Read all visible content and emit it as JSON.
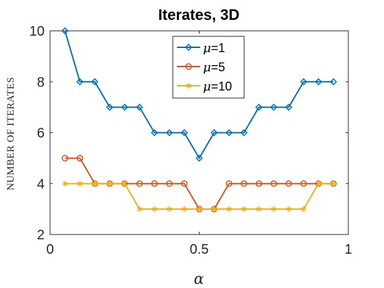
{
  "chart_data": {
    "type": "line",
    "title": "Iterates, 3D",
    "xlabel": "α",
    "ylabel": "NUMBER OF ITERATES",
    "xlim": [
      0,
      1
    ],
    "ylim": [
      2,
      10
    ],
    "xticks": [
      0,
      0.5,
      1
    ],
    "xtick_labels": [
      "0",
      "0.5",
      "1"
    ],
    "yticks": [
      2,
      4,
      6,
      8,
      10
    ],
    "ytick_labels": [
      "2",
      "4",
      "6",
      "8",
      "10"
    ],
    "grid": false,
    "legend_position": "top-center",
    "x": [
      0.05,
      0.1,
      0.15,
      0.2,
      0.25,
      0.3,
      0.35,
      0.4,
      0.45,
      0.5,
      0.55,
      0.6,
      0.65,
      0.7,
      0.75,
      0.8,
      0.85,
      0.9,
      0.95
    ],
    "series": [
      {
        "name": "=1",
        "symbol": "μ",
        "color": "#0072BD",
        "marker": "diamond",
        "values": [
          10,
          8,
          8,
          7,
          7,
          7,
          6,
          6,
          6,
          5,
          6,
          6,
          6,
          7,
          7,
          7,
          8,
          8,
          8
        ]
      },
      {
        "name": "=5",
        "symbol": "μ",
        "color": "#D95319",
        "marker": "circle",
        "values": [
          5,
          5,
          4,
          4,
          4,
          4,
          4,
          4,
          4,
          3,
          3,
          4,
          4,
          4,
          4,
          4,
          4,
          4,
          4
        ]
      },
      {
        "name": "=10",
        "symbol": "μ",
        "color": "#EDB120",
        "marker": "star",
        "values": [
          4,
          4,
          4,
          4,
          4,
          3,
          3,
          3,
          3,
          3,
          3,
          3,
          3,
          3,
          3,
          3,
          3,
          4,
          4
        ]
      }
    ]
  }
}
